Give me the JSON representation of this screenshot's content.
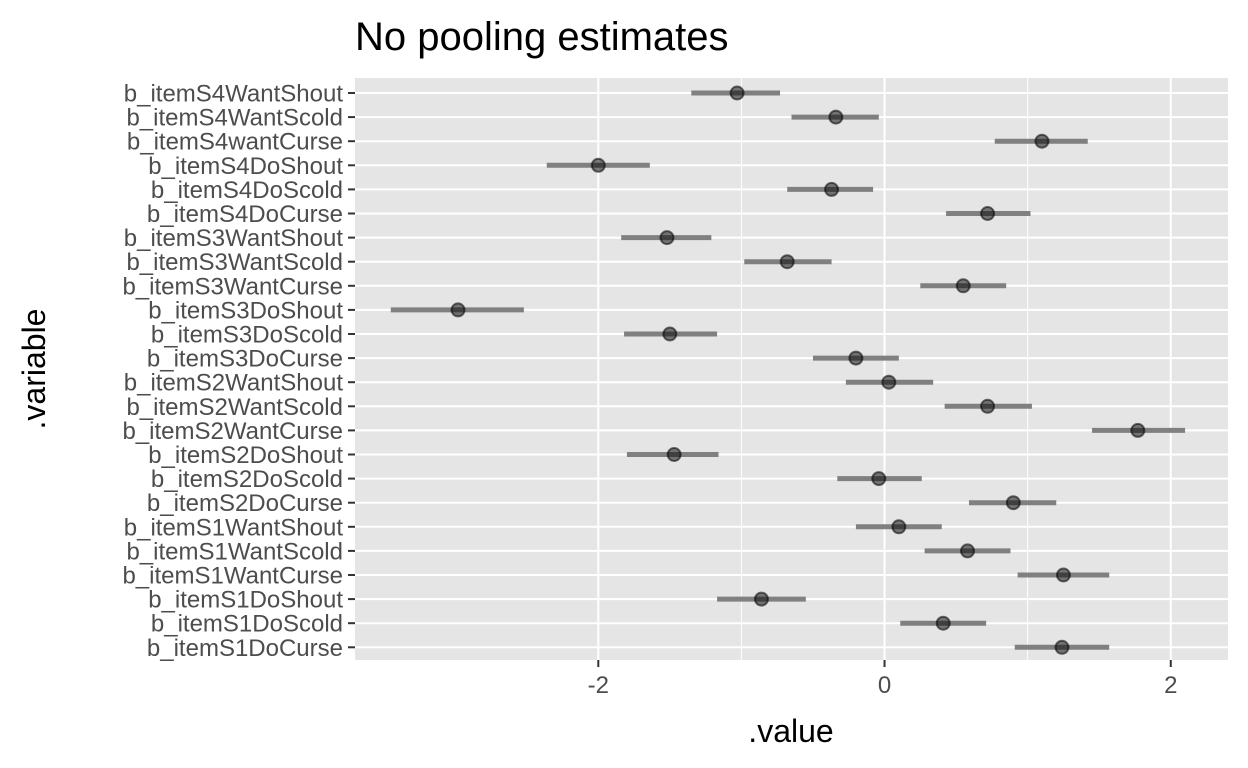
{
  "chart_data": {
    "type": "scatter",
    "title": "No pooling estimates",
    "xlabel": ".value",
    "ylabel": ".variable",
    "xlim": [
      -3.7,
      2.4
    ],
    "x_ticks": [
      -2,
      0,
      2
    ],
    "x_tick_labels": [
      "-2",
      "0",
      "2"
    ],
    "grid": true,
    "legend": "none",
    "point_color": "#000000",
    "interval_color": "#808080",
    "panel_color": "#e5e5e5",
    "categories": [
      "b_itemS4WantShout",
      "b_itemS4WantScold",
      "b_itemS4wantCurse",
      "b_itemS4DoShout",
      "b_itemS4DoScold",
      "b_itemS4DoCurse",
      "b_itemS3WantShout",
      "b_itemS3WantScold",
      "b_itemS3WantCurse",
      "b_itemS3DoShout",
      "b_itemS3DoScold",
      "b_itemS3DoCurse",
      "b_itemS2WantShout",
      "b_itemS2WantScold",
      "b_itemS2WantCurse",
      "b_itemS2DoShout",
      "b_itemS2DoScold",
      "b_itemS2DoCurse",
      "b_itemS1WantShout",
      "b_itemS1WantScold",
      "b_itemS1WantCurse",
      "b_itemS1DoShout",
      "b_itemS1DoScold",
      "b_itemS1DoCurse"
    ],
    "estimates": [
      -1.03,
      -0.34,
      1.1,
      -2.0,
      -0.37,
      0.72,
      -1.52,
      -0.68,
      0.55,
      -2.98,
      -1.5,
      -0.2,
      0.03,
      0.72,
      1.77,
      -1.47,
      -0.04,
      0.9,
      0.1,
      0.58,
      1.25,
      -0.86,
      0.41,
      1.24
    ],
    "lower": [
      -1.35,
      -0.65,
      0.77,
      -2.36,
      -0.68,
      0.43,
      -1.84,
      -0.98,
      0.25,
      -3.45,
      -1.82,
      -0.5,
      -0.27,
      0.42,
      1.45,
      -1.8,
      -0.33,
      0.59,
      -0.2,
      0.28,
      0.93,
      -1.17,
      0.11,
      0.91
    ],
    "upper": [
      -0.73,
      -0.04,
      1.42,
      -1.64,
      -0.08,
      1.02,
      -1.21,
      -0.37,
      0.85,
      -2.52,
      -1.17,
      0.1,
      0.34,
      1.03,
      2.1,
      -1.16,
      0.26,
      1.2,
      0.4,
      0.88,
      1.57,
      -0.55,
      0.71,
      1.57
    ]
  }
}
